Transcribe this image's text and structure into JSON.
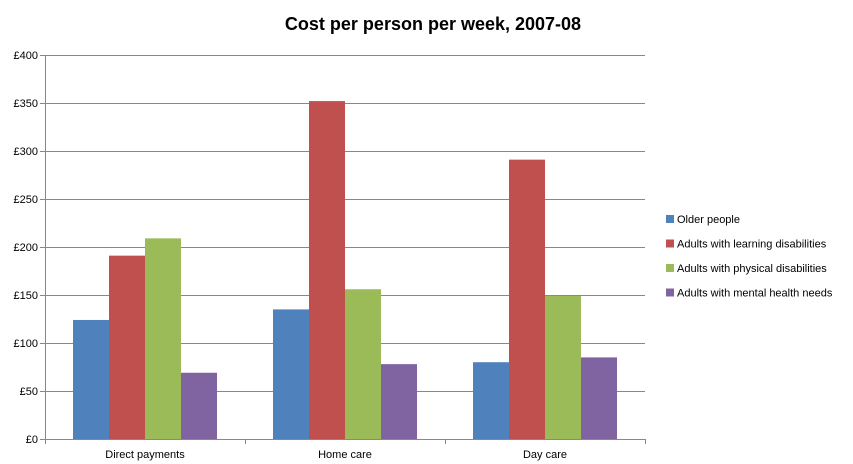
{
  "chart_data": {
    "type": "bar",
    "title": "Cost per person per week, 2007-08",
    "xlabel": "",
    "ylabel": "",
    "categories": [
      "Direct payments",
      "Home care",
      "Day care"
    ],
    "series": [
      {
        "name": "Older people",
        "color": "#4f81bd",
        "values": [
          124,
          135,
          80
        ]
      },
      {
        "name": "Adults with learning disabilities",
        "color": "#c0504d",
        "values": [
          191,
          352,
          291
        ]
      },
      {
        "name": "Adults with physical disabilities",
        "color": "#9bbb59",
        "values": [
          209,
          156,
          149
        ]
      },
      {
        "name": "Adults with mental health needs",
        "color": "#8064a2",
        "values": [
          69,
          78,
          85
        ]
      }
    ],
    "ylim": [
      0,
      400
    ],
    "yticks": [
      0,
      50,
      100,
      150,
      200,
      250,
      300,
      350,
      400
    ],
    "ytick_labels": [
      "£0",
      "£50",
      "£100",
      "£150",
      "£200",
      "£250",
      "£300",
      "£350",
      "£400"
    ],
    "grid": true,
    "legend_position": "right"
  }
}
